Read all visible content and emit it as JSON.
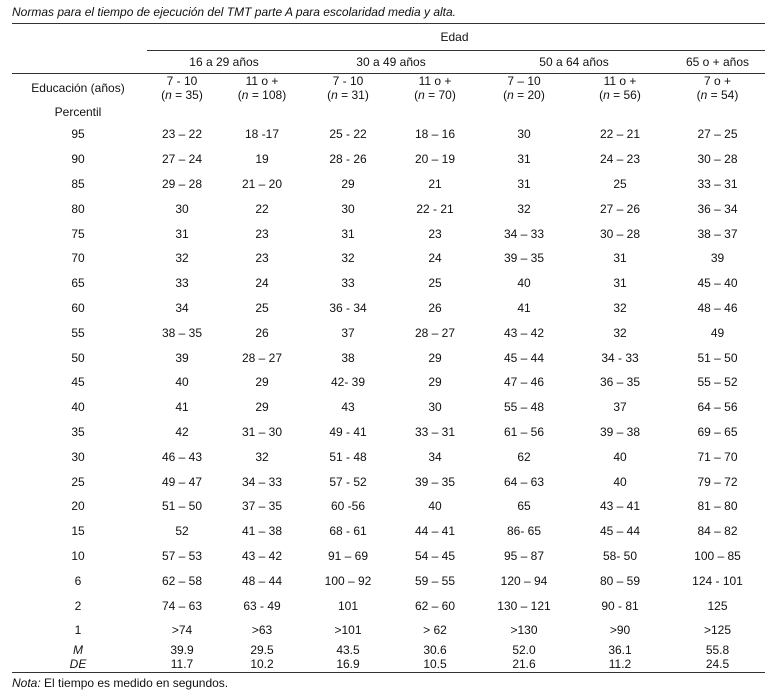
{
  "caption": "Normas para el tiempo de ejecución del TMT parte A para escolaridad media y alta.",
  "header": {
    "edad": "Edad",
    "age_groups": [
      "16 a 29 años",
      "30 a 49 años",
      "50 a 64 años",
      "65 o + años"
    ],
    "education_label": "Educación (años)",
    "percentile_label": "Percentil",
    "education_levels": [
      "7 - 10",
      "11 o +",
      "7 - 10",
      "11 o +",
      "7 – 10",
      "11 o +",
      "7 o +"
    ],
    "n_values": [
      "35",
      "108",
      "31",
      "70",
      "20",
      "56",
      "54"
    ],
    "n_symbol": "n",
    "n_open": "(",
    "n_eq": " = "
  },
  "rows": [
    {
      "p": "95",
      "v": [
        "23 – 22",
        "18 -17",
        "25 - 22",
        "18 – 16",
        "30",
        "22 – 21",
        "27 – 25"
      ]
    },
    {
      "p": "90",
      "v": [
        "27 – 24",
        "19",
        "28 - 26",
        "20 – 19",
        "31",
        "24 – 23",
        "30 – 28"
      ]
    },
    {
      "p": "85",
      "v": [
        "29 – 28",
        "21 – 20",
        "29",
        "21",
        "31",
        "25",
        "33 – 31"
      ]
    },
    {
      "p": "80",
      "v": [
        "30",
        "22",
        "30",
        "22 - 21",
        "32",
        "27 – 26",
        "36 – 34"
      ]
    },
    {
      "p": "75",
      "v": [
        "31",
        "23",
        "31",
        "23",
        "34 – 33",
        "30 – 28",
        "38 – 37"
      ]
    },
    {
      "p": "70",
      "v": [
        "32",
        "23",
        "32",
        "24",
        "39 – 35",
        "31",
        "39"
      ]
    },
    {
      "p": "65",
      "v": [
        "33",
        "24",
        "33",
        "25",
        "40",
        "31",
        "45 – 40"
      ]
    },
    {
      "p": "60",
      "v": [
        "34",
        "25",
        "36 - 34",
        "26",
        "41",
        "32",
        "48 – 46"
      ]
    },
    {
      "p": "55",
      "v": [
        "38 – 35",
        "26",
        "37",
        "28 – 27",
        "43 – 42",
        "32",
        "49"
      ]
    },
    {
      "p": "50",
      "v": [
        "39",
        "28 – 27",
        "38",
        "29",
        "45 – 44",
        "34 - 33",
        "51 – 50"
      ]
    },
    {
      "p": "45",
      "v": [
        "40",
        "29",
        "42- 39",
        "29",
        "47 – 46",
        "36 – 35",
        "55 – 52"
      ]
    },
    {
      "p": "40",
      "v": [
        "41",
        "29",
        "43",
        "30",
        "55 – 48",
        "37",
        "64 – 56"
      ]
    },
    {
      "p": "35",
      "v": [
        "42",
        "31 – 30",
        "49 - 41",
        "33 – 31",
        "61 – 56",
        "39 – 38",
        "69 – 65"
      ]
    },
    {
      "p": "30",
      "v": [
        "46 – 43",
        "32",
        "51 - 48",
        "34",
        "62",
        "40",
        "71 – 70"
      ]
    },
    {
      "p": "25",
      "v": [
        "49 – 47",
        "34 – 33",
        "57 - 52",
        "39 – 35",
        "64 – 63",
        "40",
        "79 – 72"
      ]
    },
    {
      "p": "20",
      "v": [
        "51 – 50",
        "37 – 35",
        "60 -56",
        "40",
        "65",
        "43 – 41",
        "81 – 80"
      ]
    },
    {
      "p": "15",
      "v": [
        "52",
        "41 – 38",
        "68 - 61",
        "44 – 41",
        "86- 65",
        "45 – 44",
        "84 – 82"
      ]
    },
    {
      "p": "10",
      "v": [
        "57 – 53",
        "43 – 42",
        "91 – 69",
        "54 – 45",
        "95 – 87",
        "58- 50",
        "100 – 85"
      ]
    },
    {
      "p": "6",
      "v": [
        "62 – 58",
        "48 – 44",
        "100 – 92",
        "59 – 55",
        "120 – 94",
        "80 – 59",
        "124 - 101"
      ]
    },
    {
      "p": "2",
      "v": [
        "74 – 63",
        "63 - 49",
        "101",
        "62 – 60",
        "130 – 121",
        "90 - 81",
        "125"
      ]
    },
    {
      "p": "1",
      "v": [
        ">74",
        ">63",
        ">101",
        "> 62",
        ">130",
        ">90",
        ">125"
      ]
    }
  ],
  "stats": [
    {
      "label": "M",
      "v": [
        "39.9",
        "29.5",
        "43.5",
        "30.6",
        "52.0",
        "36.1",
        "55.8"
      ]
    },
    {
      "label": "DE",
      "v": [
        "11.7",
        "10.2",
        "16.9",
        "10.5",
        "21.6",
        "11.2",
        "24.5"
      ]
    }
  ],
  "note": {
    "label": "Nota:",
    "text": " El tiempo es medido en segundos."
  }
}
